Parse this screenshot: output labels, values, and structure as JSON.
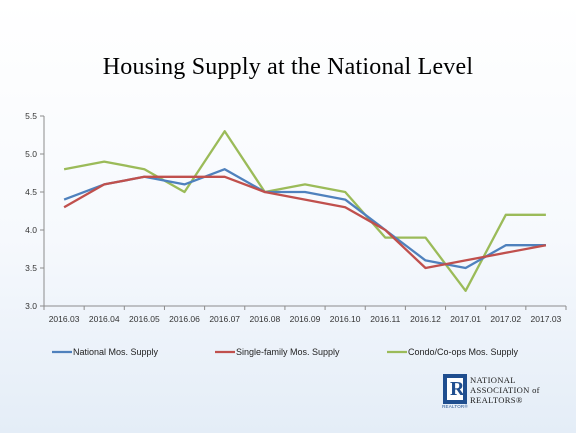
{
  "slide": {
    "title": "Housing Supply at the National Level"
  },
  "chart_data": {
    "type": "line",
    "title": "Housing Supply at the National Level",
    "xlabel": "",
    "ylabel": "",
    "categories": [
      "2016.03",
      "2016.04",
      "2016.05",
      "2016.06",
      "2016.07",
      "2016.08",
      "2016.09",
      "2016.10",
      "2016.11",
      "2016.12",
      "2017.01",
      "2017.02",
      "2017.03"
    ],
    "ylim": [
      3.0,
      5.5
    ],
    "yticks": [
      "3.0",
      "3.5",
      "4.0",
      "4.5",
      "5.0",
      "5.5"
    ],
    "grid": false,
    "legend": "bottom",
    "series": [
      {
        "name": "National Mos. Supply",
        "color": "#4f81bd",
        "values": [
          4.4,
          4.6,
          4.7,
          4.6,
          4.8,
          4.5,
          4.5,
          4.4,
          4.0,
          3.6,
          3.5,
          3.8,
          3.8
        ]
      },
      {
        "name": "Single-family Mos. Supply",
        "color": "#c0504d",
        "values": [
          4.3,
          4.6,
          4.7,
          4.7,
          4.7,
          4.5,
          4.4,
          4.3,
          4.0,
          3.5,
          3.6,
          3.7,
          3.8
        ]
      },
      {
        "name": "Condo/Co-ops Mos. Supply",
        "color": "#9bbb59",
        "values": [
          4.8,
          4.9,
          4.8,
          4.5,
          5.3,
          4.5,
          4.6,
          4.5,
          3.9,
          3.9,
          3.2,
          4.2,
          4.2
        ]
      }
    ]
  },
  "logo": {
    "icon": "realtor-r-logo-icon",
    "mark_caption": "REALTOR®",
    "line1": "NATIONAL",
    "line2": "ASSOCIATION of",
    "line3": "REALTORS®"
  }
}
